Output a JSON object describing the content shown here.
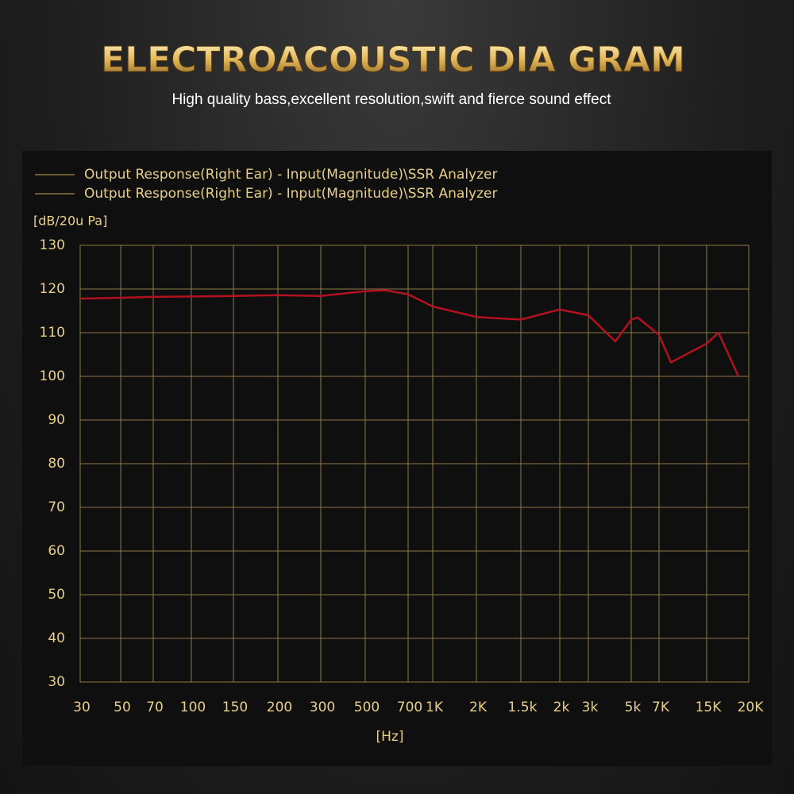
{
  "chart_data": {
    "type": "line",
    "title": "ELECTROACOUSTIC DIA GRAM",
    "subtitle": "High quality bass,excellent resolution,swift and fierce sound effect",
    "legend": [
      "Output Response(Right Ear) - Input(Magnitude)\\SSR Analyzer",
      "Output Response(Right Ear) - Input(Magnitude)\\SSR Analyzer"
    ],
    "legend_color": "#c9a95a",
    "y_label": "[dB/20u Pa]",
    "x_label": "[Hz]",
    "categories": [
      "30",
      "50",
      "70",
      "100",
      "150",
      "200",
      "300",
      "500",
      null,
      "700",
      "1K",
      "2K",
      "1.5k",
      "2k",
      "3k",
      null,
      "5k",
      null,
      "7K",
      null,
      "15K",
      null,
      null,
      "20K"
    ],
    "series": [
      {
        "color": "#b3111f",
        "values": [
          117.8,
          118,
          118.2,
          118.3,
          118.4,
          118.6,
          118.4,
          119.5,
          119.7,
          118.8,
          116,
          113.6,
          113,
          115.3,
          114,
          108,
          113,
          113.5,
          109.5,
          103.2,
          107.5,
          110,
          100,
          null
        ]
      }
    ],
    "ylim": [
      30,
      130
    ],
    "yticks": [
      30,
      40,
      50,
      60,
      70,
      80,
      90,
      100,
      110,
      120,
      130
    ],
    "grid": true,
    "grid_color": "#8c7a45"
  }
}
